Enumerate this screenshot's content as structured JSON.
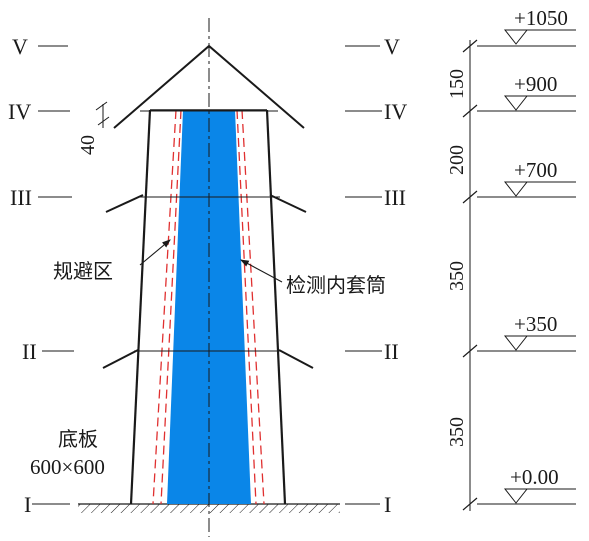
{
  "section_labels": {
    "left": [
      "V",
      "IV",
      "III",
      "II",
      "I"
    ],
    "right": [
      "V",
      "IV",
      "III",
      "II",
      "I"
    ]
  },
  "elevations": [
    "+1050",
    "+900",
    "+700",
    "+350",
    "+0.00"
  ],
  "dimensions": [
    "150",
    "200",
    "350",
    "350"
  ],
  "annotations": {
    "thickness": "40",
    "avoid_zone": "规避区",
    "inner_sleeve": "检测内套筒",
    "base_plate_title": "底板",
    "base_plate_size": "600×600"
  },
  "colors": {
    "core_fill": "#0a86e8",
    "avoid_zone_line": "#e03030",
    "line": "#1a1a1a"
  }
}
